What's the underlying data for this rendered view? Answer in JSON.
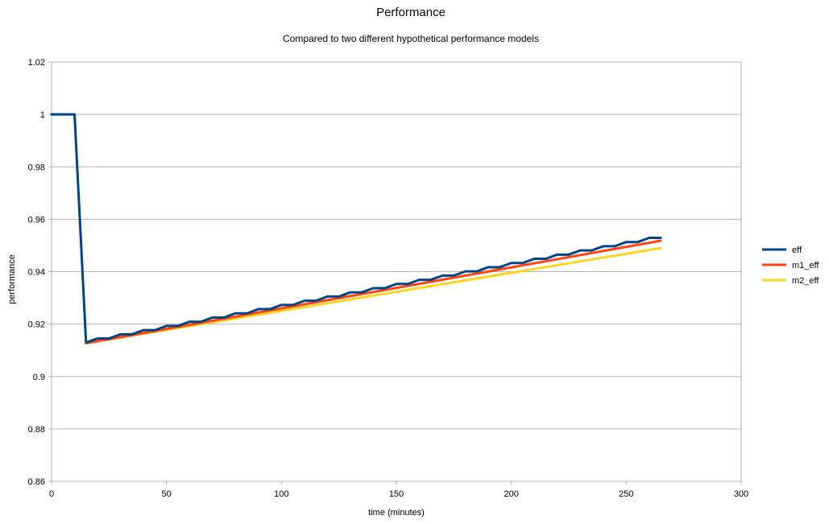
{
  "chart_data": {
    "type": "line",
    "title": "Performance",
    "subtitle": "Compared to two different hypothetical performance models",
    "xlabel": "time (minutes)",
    "ylabel": "performance",
    "xlim": [
      0,
      300
    ],
    "ylim": [
      0.86,
      1.02
    ],
    "x_ticks": [
      0,
      50,
      100,
      150,
      200,
      250,
      300
    ],
    "y_ticks": [
      0.86,
      0.88,
      0.9,
      0.92,
      0.94,
      0.96,
      0.98,
      1,
      1.02
    ],
    "x_tick_labels": [
      "0",
      "50",
      "100",
      "150",
      "200",
      "250",
      "300"
    ],
    "y_tick_labels": [
      "0.86",
      "0.88",
      "0.9",
      "0.92",
      "0.94",
      "0.96",
      "0.98",
      "1",
      "1.02"
    ],
    "grid": true,
    "legend_position": "right",
    "series": [
      {
        "name": "eff",
        "color": "#004586",
        "points": [
          [
            0,
            1.0
          ],
          [
            10,
            1.0
          ],
          [
            15,
            0.913
          ],
          [
            20,
            0.9145
          ],
          [
            25,
            0.9145
          ],
          [
            30,
            0.9161
          ],
          [
            35,
            0.9161
          ],
          [
            40,
            0.9177
          ],
          [
            45,
            0.9177
          ],
          [
            50,
            0.9193
          ],
          [
            55,
            0.9193
          ],
          [
            60,
            0.9209
          ],
          [
            65,
            0.9209
          ],
          [
            70,
            0.9225
          ],
          [
            75,
            0.9225
          ],
          [
            80,
            0.9241
          ],
          [
            85,
            0.9241
          ],
          [
            90,
            0.9257
          ],
          [
            95,
            0.9257
          ],
          [
            100,
            0.9273
          ],
          [
            105,
            0.9273
          ],
          [
            110,
            0.9289
          ],
          [
            115,
            0.9289
          ],
          [
            120,
            0.9305
          ],
          [
            125,
            0.9305
          ],
          [
            130,
            0.9321
          ],
          [
            135,
            0.9321
          ],
          [
            140,
            0.9337
          ],
          [
            145,
            0.9337
          ],
          [
            150,
            0.9353
          ],
          [
            155,
            0.9353
          ],
          [
            160,
            0.9369
          ],
          [
            165,
            0.9369
          ],
          [
            170,
            0.9385
          ],
          [
            175,
            0.9385
          ],
          [
            180,
            0.9401
          ],
          [
            185,
            0.9401
          ],
          [
            190,
            0.9417
          ],
          [
            195,
            0.9417
          ],
          [
            200,
            0.9433
          ],
          [
            205,
            0.9433
          ],
          [
            210,
            0.9449
          ],
          [
            215,
            0.9449
          ],
          [
            220,
            0.9465
          ],
          [
            225,
            0.9465
          ],
          [
            230,
            0.9481
          ],
          [
            235,
            0.9481
          ],
          [
            240,
            0.9497
          ],
          [
            245,
            0.9497
          ],
          [
            250,
            0.9513
          ],
          [
            255,
            0.9513
          ],
          [
            260,
            0.9529
          ],
          [
            265,
            0.9529
          ]
        ]
      },
      {
        "name": "m1_eff",
        "color": "#ff420e",
        "points": [
          [
            15,
            0.9127
          ],
          [
            265,
            0.9518
          ]
        ]
      },
      {
        "name": "m2_eff",
        "color": "#ffd320",
        "points": [
          [
            15,
            0.9127
          ],
          [
            265,
            0.949
          ]
        ]
      }
    ]
  }
}
